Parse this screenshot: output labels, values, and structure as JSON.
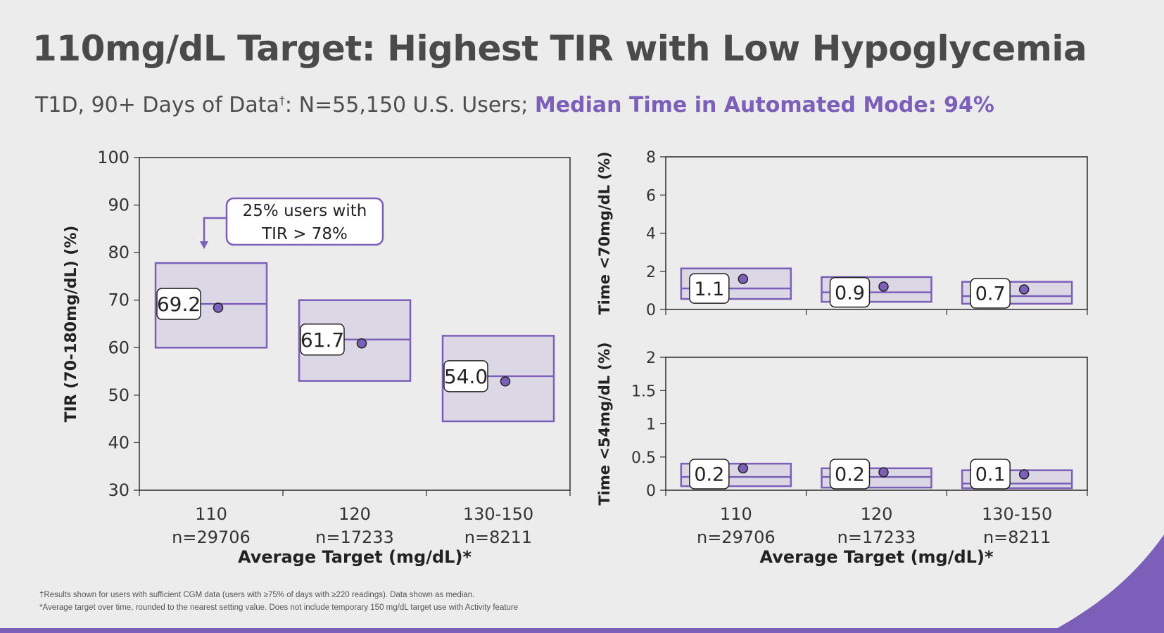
{
  "title": "110mg/dL Target: Highest TIR with Low Hypoglycemia",
  "subtitle": {
    "lead": "T1D, 90+ Days of Data",
    "dagger": "†",
    "rest": ": N=55,150 U.S. Users; ",
    "highlight": "Median Time in Automated Mode: 94%"
  },
  "colors": {
    "accent": "#7b5fb8",
    "box_fill": "#dcd7e4",
    "dot": "#7b5fb8"
  },
  "footnotes": [
    "†Results shown for users with sufficient CGM data (users with ≥75% of days with ≥220 readings). Data shown as median.",
    "*Average target over time, rounded to the nearest setting value. Does not include temporary 150 mg/dL target use with Activity feature"
  ],
  "chart_data": [
    {
      "type": "box",
      "name": "tir",
      "title": "",
      "ylabel": "TIR (70-180mg/dL) (%)",
      "xlabel": "Average Target (mg/dL)*",
      "ylim": [
        30,
        100
      ],
      "yticks": [
        30,
        40,
        50,
        60,
        70,
        80,
        90,
        100
      ],
      "categories": [
        "110",
        "120",
        "130-150"
      ],
      "category_n": [
        "n=29706",
        "n=17233",
        "n=8211"
      ],
      "q1": [
        60,
        53,
        44.5
      ],
      "median": [
        69.2,
        61.7,
        54.0
      ],
      "q3": [
        77.8,
        70,
        62.5
      ],
      "mean": [
        68.4,
        60.9,
        52.9
      ],
      "median_labels": [
        "69.2",
        "61.7",
        "54.0"
      ],
      "annotation": {
        "line1": "25% users with",
        "line2": "TIR > 78%"
      }
    },
    {
      "type": "box",
      "name": "below70",
      "ylabel": "Time <70mg/dL (%)",
      "ylim": [
        0,
        8
      ],
      "yticks": [
        0,
        2,
        4,
        6,
        8
      ],
      "categories": [
        "110",
        "120",
        "130-150"
      ],
      "q1": [
        0.55,
        0.4,
        0.3
      ],
      "median": [
        1.1,
        0.9,
        0.7
      ],
      "q3": [
        2.15,
        1.7,
        1.45
      ],
      "mean": [
        1.6,
        1.2,
        1.05
      ],
      "median_labels": [
        "1.1",
        "0.9",
        "0.7"
      ]
    },
    {
      "type": "box",
      "name": "below54",
      "ylabel": "Time <54mg/dL (%)",
      "xlabel": "Average Target (mg/dL)*",
      "ylim": [
        0,
        2
      ],
      "yticks": [
        "0",
        "0.5",
        "1",
        "1.5",
        "2"
      ],
      "categories": [
        "110",
        "120",
        "130-150"
      ],
      "category_n": [
        "n=29706",
        "n=17233",
        "n=8211"
      ],
      "q1": [
        0.06,
        0.04,
        0.03
      ],
      "median": [
        0.2,
        0.2,
        0.1
      ],
      "q3": [
        0.4,
        0.33,
        0.3
      ],
      "mean": [
        0.33,
        0.27,
        0.24
      ],
      "median_labels": [
        "0.2",
        "0.2",
        "0.1"
      ]
    }
  ]
}
